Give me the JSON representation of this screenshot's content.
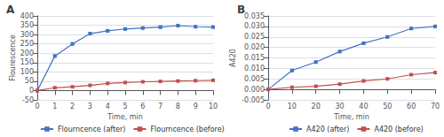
{
  "chart_data": [
    {
      "type": "line",
      "title": "A",
      "xlabel": "Time, min",
      "ylabel": "Flourescence",
      "x": [
        0,
        1,
        2,
        3,
        4,
        5,
        6,
        7,
        8,
        9,
        10
      ],
      "series": [
        {
          "name": "Flourncence (after)",
          "color": "#4472C4",
          "values": [
            0,
            185,
            250,
            305,
            320,
            330,
            335,
            340,
            348,
            342,
            340
          ],
          "errors": [
            5,
            6,
            6,
            7,
            6,
            6,
            6,
            6,
            6,
            6,
            6
          ]
        },
        {
          "name": "Flourncence (before)",
          "color": "#C0504D",
          "values": [
            0,
            15,
            20,
            28,
            38,
            43,
            47,
            49,
            51,
            53,
            55
          ],
          "errors": [
            1,
            1,
            1,
            2,
            2,
            2,
            2,
            2,
            2,
            2,
            2
          ]
        }
      ],
      "xlim": [
        0,
        10
      ],
      "xticks": [
        0,
        1,
        2,
        3,
        4,
        5,
        6,
        7,
        8,
        9,
        10
      ],
      "ylim": [
        -50,
        400
      ],
      "yticks": [
        -50,
        0,
        50,
        100,
        150,
        200,
        250,
        300,
        350,
        400
      ],
      "marker": "square",
      "grid": true,
      "legend": "bottom"
    },
    {
      "type": "line",
      "title": "B",
      "xlabel": "Time, min",
      "ylabel": "A420",
      "x": [
        0,
        10,
        20,
        30,
        40,
        50,
        60,
        70
      ],
      "series": [
        {
          "name": "A420 (after)",
          "color": "#4472C4",
          "values": [
            0.0,
            0.009,
            0.013,
            0.018,
            0.022,
            0.025,
            0.029,
            0.03
          ],
          "errors": [
            0,
            0.0005,
            0.0005,
            0.0005,
            0.0005,
            0.0005,
            0.0005,
            0.0005
          ]
        },
        {
          "name": "A420 (before)",
          "color": "#C0504D",
          "values": [
            0.0,
            0.001,
            0.0015,
            0.0025,
            0.004,
            0.005,
            0.007,
            0.008
          ],
          "errors": [
            0,
            0.0002,
            0.0002,
            0.0002,
            0.0002,
            0.0002,
            0.0002,
            0.0002
          ]
        }
      ],
      "xlim": [
        0,
        70
      ],
      "xticks": [
        0,
        10,
        20,
        30,
        40,
        50,
        60,
        70
      ],
      "ylim": [
        -0.005,
        0.035
      ],
      "yticks": [
        -0.005,
        {
          "value": 0.0,
          "label": "0.000"
        },
        0.005,
        {
          "value": 0.01,
          "label": "0.010"
        },
        0.015,
        {
          "value": 0.02,
          "label": "0.020"
        },
        0.025,
        {
          "value": 0.03,
          "label": "0.030"
        },
        0.035
      ],
      "marker": "square",
      "grid": true,
      "legend": "bottom"
    }
  ]
}
